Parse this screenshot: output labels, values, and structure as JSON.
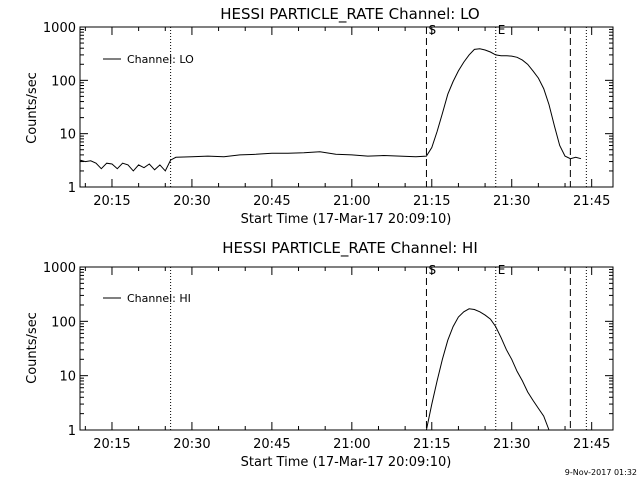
{
  "footer": {
    "date": "9-Nov-2017 01:32"
  },
  "chart_data": [
    {
      "type": "line",
      "title": "HESSI PARTICLE_RATE Channel: LO",
      "xlabel": "Start Time (17-Mar-17 20:09:10)",
      "ylabel": "Counts/sec",
      "x_unit": "UT time of day (HH:MM)",
      "xlim": [
        "20:09",
        "21:49"
      ],
      "ylim": [
        1,
        1000
      ],
      "yscale": "log",
      "x_ticks": [
        "20:15",
        "20:30",
        "20:45",
        "21:00",
        "21:15",
        "21:30",
        "21:45"
      ],
      "y_ticks": [
        "1",
        "10",
        "100",
        "1000"
      ],
      "legend": {
        "position": "top-left",
        "entries": [
          "Channel: LO"
        ]
      },
      "markers": [
        {
          "time": "20:26",
          "style": "dotted",
          "label": ""
        },
        {
          "time": "21:14",
          "style": "dashed",
          "label": "S"
        },
        {
          "time": "21:27",
          "style": "dotted",
          "label": "E"
        },
        {
          "time": "21:41",
          "style": "dashed",
          "label": ""
        },
        {
          "time": "21:44",
          "style": "dotted",
          "label": ""
        }
      ],
      "series": [
        {
          "name": "Channel: LO",
          "x": [
            "20:09",
            "20:10",
            "20:11",
            "20:12",
            "20:13",
            "20:14",
            "20:15",
            "20:16",
            "20:17",
            "20:18",
            "20:19",
            "20:20",
            "20:21",
            "20:22",
            "20:23",
            "20:24",
            "20:25",
            "20:26",
            "20:27",
            "20:30",
            "20:33",
            "20:36",
            "20:39",
            "20:42",
            "20:45",
            "20:48",
            "20:51",
            "20:54",
            "20:57",
            "21:00",
            "21:03",
            "21:06",
            "21:09",
            "21:12",
            "21:14",
            "21:15",
            "21:16",
            "21:17",
            "21:18",
            "21:19",
            "21:20",
            "21:21",
            "21:22",
            "21:23",
            "21:24",
            "21:25",
            "21:26",
            "21:27",
            "21:28",
            "21:29",
            "21:30",
            "21:31",
            "21:32",
            "21:33",
            "21:34",
            "21:35",
            "21:36",
            "21:37",
            "21:38",
            "21:39",
            "21:40",
            "21:41",
            "21:42",
            "21:43"
          ],
          "y": [
            3.2,
            3.0,
            3.1,
            2.8,
            2.2,
            2.8,
            2.7,
            2.2,
            2.8,
            2.6,
            2.0,
            2.6,
            2.3,
            2.7,
            2.1,
            2.6,
            2.0,
            3.2,
            3.6,
            3.7,
            3.8,
            3.7,
            4.0,
            4.1,
            4.3,
            4.3,
            4.4,
            4.6,
            4.1,
            4.0,
            3.8,
            3.9,
            3.8,
            3.7,
            3.8,
            5.5,
            11,
            24,
            55,
            95,
            150,
            220,
            300,
            380,
            390,
            370,
            340,
            300,
            290,
            290,
            285,
            270,
            240,
            200,
            150,
            110,
            70,
            35,
            14,
            6,
            3.8,
            3.4,
            3.6,
            3.4
          ]
        }
      ]
    },
    {
      "type": "line",
      "title": "HESSI PARTICLE_RATE Channel: HI",
      "xlabel": "Start Time (17-Mar-17 20:09:10)",
      "ylabel": "Counts/sec",
      "x_unit": "UT time of day (HH:MM)",
      "xlim": [
        "20:09",
        "21:49"
      ],
      "ylim": [
        1,
        1000
      ],
      "yscale": "log",
      "x_ticks": [
        "20:15",
        "20:30",
        "20:45",
        "21:00",
        "21:15",
        "21:30",
        "21:45"
      ],
      "y_ticks": [
        "1",
        "10",
        "100",
        "1000"
      ],
      "legend": {
        "position": "top-left",
        "entries": [
          "Channel: HI"
        ]
      },
      "markers": [
        {
          "time": "20:26",
          "style": "dotted",
          "label": ""
        },
        {
          "time": "21:14",
          "style": "dashed",
          "label": "S"
        },
        {
          "time": "21:27",
          "style": "dotted",
          "label": "E"
        },
        {
          "time": "21:41",
          "style": "dashed",
          "label": ""
        },
        {
          "time": "21:44",
          "style": "dotted",
          "label": ""
        }
      ],
      "series": [
        {
          "name": "Channel: HI",
          "x": [
            "21:14",
            "21:15",
            "21:16",
            "21:17",
            "21:18",
            "21:19",
            "21:20",
            "21:21",
            "21:22",
            "21:23",
            "21:24",
            "21:25",
            "21:26",
            "21:27",
            "21:28",
            "21:29",
            "21:30",
            "21:31",
            "21:32",
            "21:33",
            "21:34",
            "21:35",
            "21:36",
            "21:37"
          ],
          "y": [
            1,
            3,
            8,
            20,
            45,
            80,
            120,
            150,
            170,
            165,
            150,
            130,
            110,
            80,
            50,
            30,
            20,
            12,
            8,
            5,
            3.5,
            2.5,
            1.8,
            1
          ]
        }
      ]
    }
  ]
}
